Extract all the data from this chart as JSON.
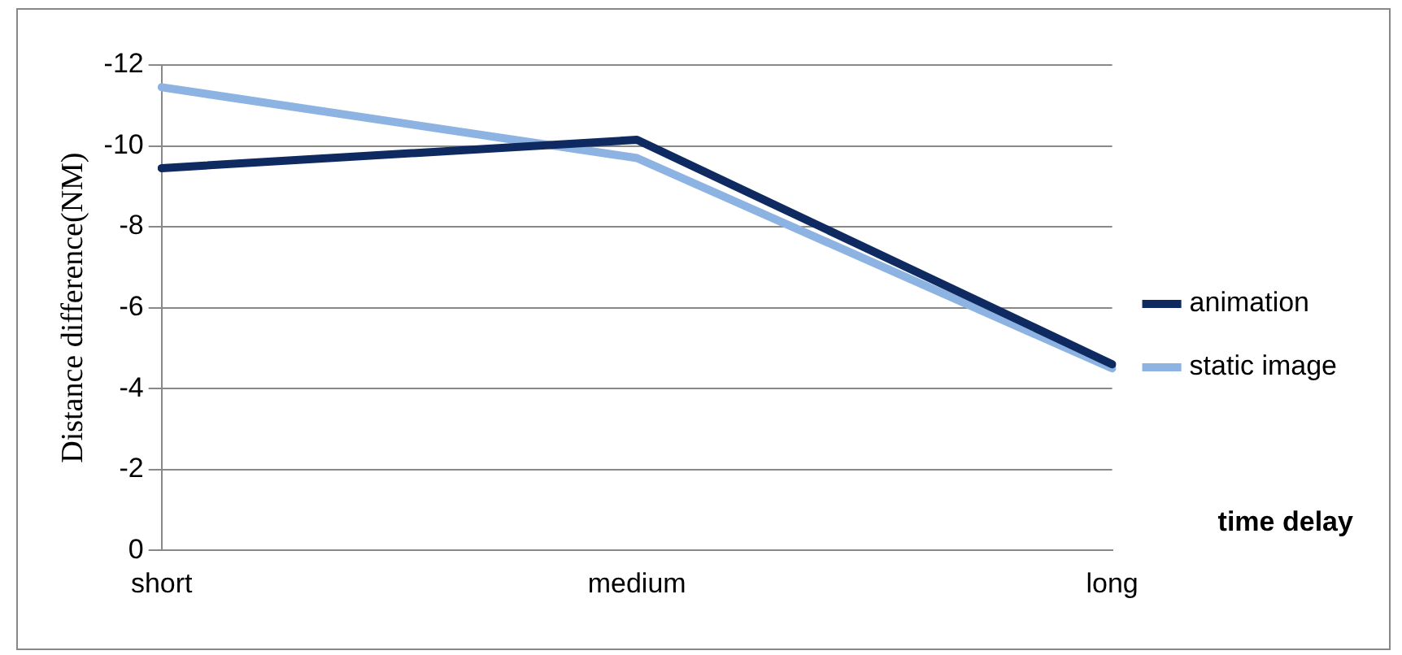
{
  "chart_data": {
    "type": "line",
    "xlabel": "time delay",
    "ylabel": "Distance difference(NM)",
    "categories": [
      "short",
      "medium",
      "long"
    ],
    "series": [
      {
        "name": "animation",
        "color": "#0e2a61",
        "values": [
          -9.45,
          -10.15,
          -4.6
        ]
      },
      {
        "name": "static image",
        "color": "#8db3e2",
        "values": [
          -11.45,
          -9.7,
          -4.5
        ]
      }
    ],
    "ylim": [
      0,
      -12
    ],
    "yticks": [
      0,
      -2,
      -4,
      -6,
      -8,
      -10,
      -12
    ],
    "grid": "y",
    "legend": "right",
    "marker": "none",
    "line_style": "solid"
  }
}
